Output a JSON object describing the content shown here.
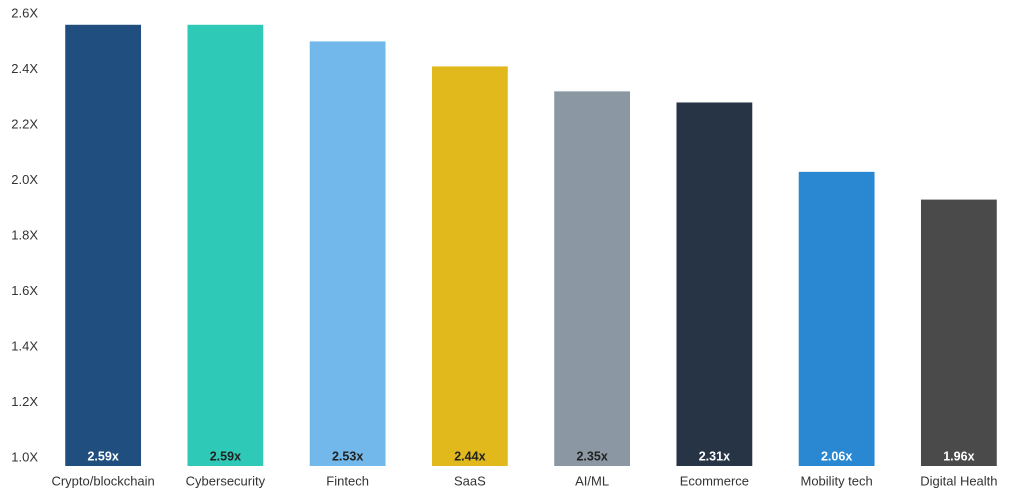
{
  "chart_data": {
    "type": "bar",
    "categories": [
      "Crypto/blockchain",
      "Cybersecurity",
      "Fintech",
      "SaaS",
      "AI/ML",
      "Ecommerce",
      "Mobility tech",
      "Digital Health"
    ],
    "values": [
      2.59,
      2.59,
      2.53,
      2.44,
      2.35,
      2.31,
      2.06,
      1.96
    ],
    "value_labels": [
      "2.59x",
      "2.59x",
      "2.53x",
      "2.44x",
      "2.35x",
      "2.31x",
      "2.06x",
      "1.96x"
    ],
    "colors": [
      "#1f4e7f",
      "#2ec9b7",
      "#72b8ea",
      "#e1b91c",
      "#8b97a2",
      "#263445",
      "#2a88d2",
      "#4a4a4a"
    ],
    "ylim": [
      1.0,
      2.6
    ],
    "yticks": [
      {
        "value": 1.0,
        "label": "1.0X"
      },
      {
        "value": 1.2,
        "label": "1.2X"
      },
      {
        "value": 1.4,
        "label": "1.4X"
      },
      {
        "value": 1.6,
        "label": "1.6X"
      },
      {
        "value": 1.8,
        "label": "1.8X"
      },
      {
        "value": 2.0,
        "label": "2.0X"
      },
      {
        "value": 2.2,
        "label": "2.2X"
      },
      {
        "value": 2.4,
        "label": "2.4X"
      },
      {
        "value": 2.6,
        "label": "2.6X"
      }
    ],
    "grid": false
  }
}
